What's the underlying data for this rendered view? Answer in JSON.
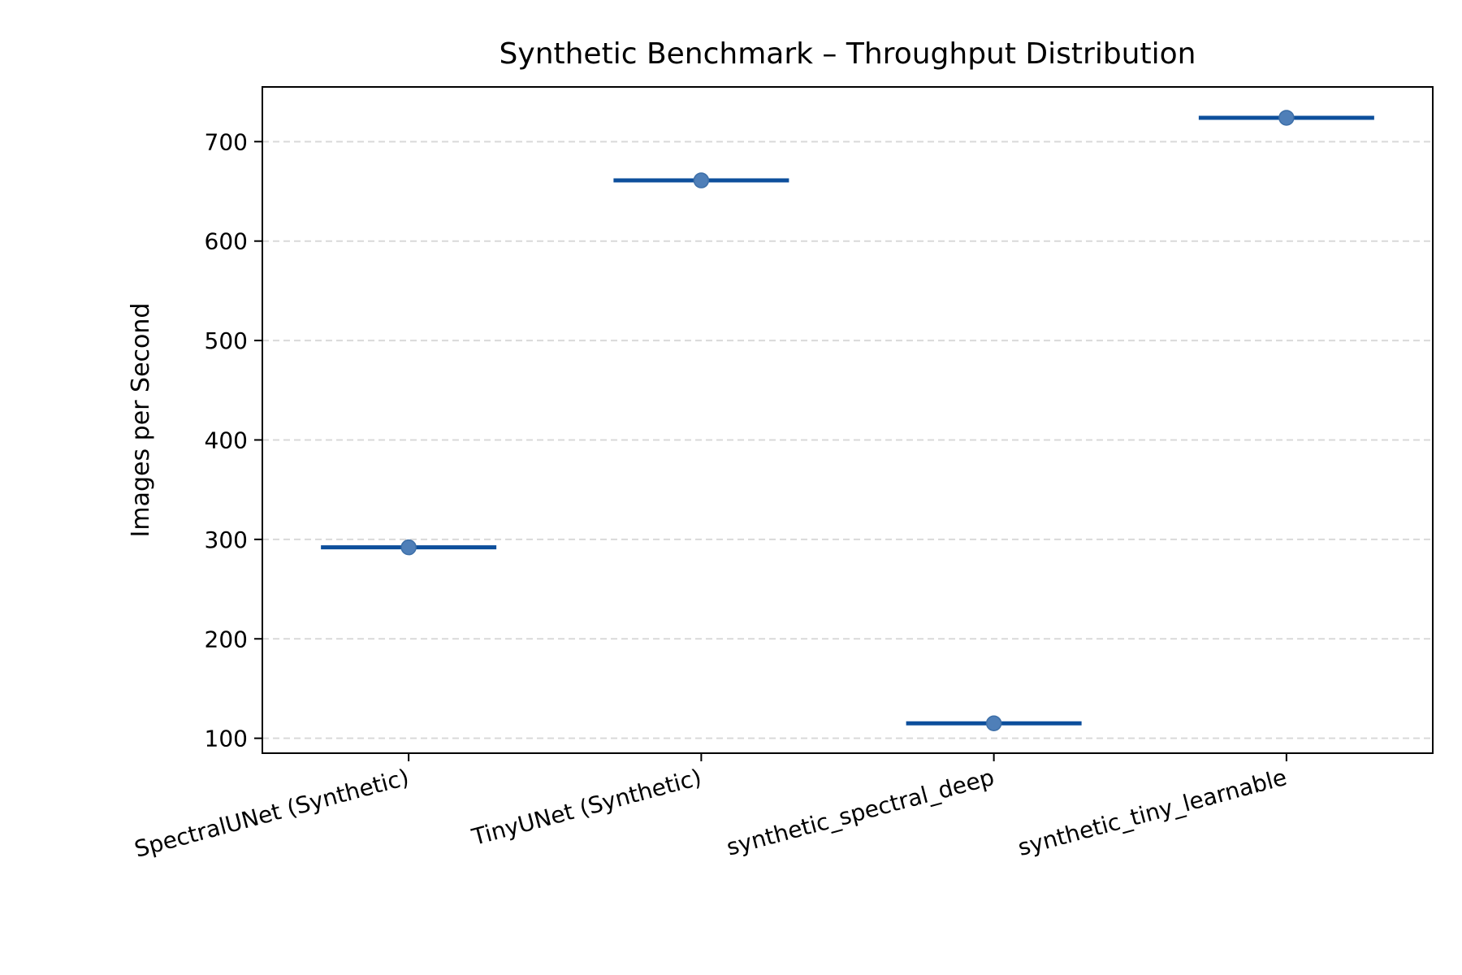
{
  "chart_data": {
    "type": "scatter",
    "title": "Synthetic Benchmark – Throughput Distribution",
    "xlabel": "",
    "ylabel": "Images per Second",
    "categories": [
      "SpectralUNet (Synthetic)",
      "TinyUNet (Synthetic)",
      "synthetic_spectral_deep",
      "synthetic_tiny_learnable"
    ],
    "series": [
      {
        "values": [
          292,
          661,
          115,
          724
        ]
      }
    ],
    "ylim": [
      85,
      755
    ],
    "yticks": [
      100,
      200,
      300,
      400,
      500,
      600,
      700
    ],
    "grid": "y-dashed",
    "colors": {
      "line": "#0d4f9c",
      "point": "#4f7fb8",
      "grid": "#d9d9d9"
    }
  }
}
